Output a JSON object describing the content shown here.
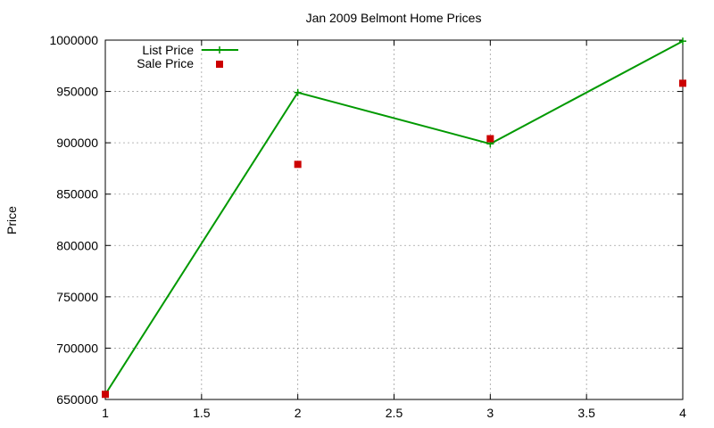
{
  "chart_data": {
    "type": "line",
    "title": "Jan 2009 Belmont Home Prices",
    "xlabel": "",
    "ylabel": "Price",
    "xlim": [
      1,
      4
    ],
    "ylim": [
      650000,
      1000000
    ],
    "x_ticks": [
      1,
      1.5,
      2,
      2.5,
      3,
      3.5,
      4
    ],
    "x_tick_labels": [
      "1",
      "1.5",
      "2",
      "2.5",
      "3",
      "3.5",
      "4"
    ],
    "y_ticks": [
      650000,
      700000,
      750000,
      800000,
      850000,
      900000,
      950000,
      1000000
    ],
    "y_tick_labels": [
      "650000",
      "700000",
      "750000",
      "800000",
      "850000",
      "900000",
      "950000",
      "1000000"
    ],
    "grid": true,
    "legend_position": "top-left",
    "series": [
      {
        "name": "List Price",
        "style": "line-with-plus-markers",
        "color": "#009900",
        "x": [
          1,
          2,
          3,
          4
        ],
        "y": [
          655000,
          949000,
          899000,
          999000
        ]
      },
      {
        "name": "Sale Price",
        "style": "square-points",
        "color": "#cc0000",
        "x": [
          1,
          2,
          3,
          4
        ],
        "y": [
          655000,
          879000,
          904000,
          958000
        ]
      }
    ]
  }
}
